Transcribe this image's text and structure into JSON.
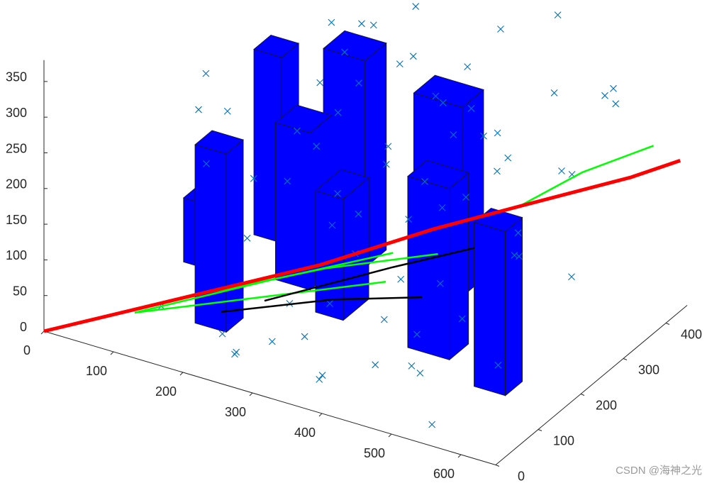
{
  "chart_data": {
    "type": "scatter3d",
    "xlim": [
      0,
      650
    ],
    "ylim": [
      0,
      450
    ],
    "zlim": [
      0,
      380
    ],
    "xticks": [
      0,
      100,
      200,
      300,
      400,
      500,
      600
    ],
    "yticks": [
      0,
      100,
      200,
      300,
      400
    ],
    "zticks": [
      0,
      50,
      100,
      150,
      200,
      250,
      300,
      350
    ],
    "scatter": {
      "color": "#0072bd",
      "x": [
        50,
        80,
        120,
        150,
        170,
        200,
        210,
        230,
        240,
        260,
        270,
        280,
        290,
        300,
        310,
        320,
        330,
        340,
        350,
        360,
        370,
        380,
        390,
        400,
        410,
        420,
        430,
        440,
        450,
        460,
        470,
        480,
        490,
        500,
        510,
        520,
        530,
        540,
        550,
        560,
        570,
        580,
        590,
        600,
        100,
        140,
        190,
        250,
        300,
        350,
        400,
        450,
        500,
        550,
        220,
        330,
        440,
        260,
        370,
        480,
        160,
        280,
        390,
        500,
        240,
        360,
        310,
        420,
        200,
        350
      ],
      "y": [
        300,
        250,
        80,
        350,
        200,
        420,
        150,
        300,
        60,
        380,
        250,
        120,
        400,
        200,
        330,
        90,
        270,
        440,
        160,
        350,
        50,
        300,
        220,
        420,
        130,
        380,
        260,
        60,
        330,
        180,
        440,
        100,
        290,
        400,
        150,
        350,
        240,
        30,
        420,
        200,
        310,
        120,
        380,
        260,
        200,
        420,
        330,
        40,
        250,
        100,
        380,
        160,
        300,
        440,
        60,
        200,
        120,
        350,
        400,
        80,
        170,
        220,
        10,
        60,
        180,
        280,
        30,
        250,
        380,
        420
      ],
      "z": [
        100,
        260,
        30,
        150,
        80,
        280,
        200,
        350,
        10,
        120,
        260,
        60,
        340,
        180,
        300,
        40,
        220,
        250,
        130,
        250,
        20,
        290,
        160,
        330,
        70,
        210,
        270,
        50,
        190,
        110,
        360,
        30,
        240,
        170,
        90,
        310,
        140,
        10,
        280,
        200,
        230,
        60,
        300,
        120,
        240,
        180,
        150,
        20,
        310,
        90,
        200,
        260,
        100,
        280,
        30,
        160,
        140,
        330,
        220,
        50,
        270,
        120,
        40,
        110,
        190,
        350,
        60,
        170,
        260,
        80
      ]
    },
    "boxes": {
      "color": "#0000ff",
      "x": [
        150,
        60,
        100,
        180,
        264,
        200,
        527,
        407,
        330
      ],
      "y": [
        110,
        230,
        330,
        250,
        207,
        330,
        150,
        190,
        330
      ],
      "dx": [
        45,
        30,
        40,
        50,
        40,
        60,
        45,
        60,
        70
      ],
      "dy": [
        40,
        40,
        40,
        50,
        60,
        50,
        40,
        45,
        50
      ],
      "height": [
        250,
        90,
        260,
        220,
        170,
        290,
        230,
        240,
        265
      ]
    },
    "series": [
      {
        "color": "#00ff00",
        "x": [
          100,
          250,
          400
        ],
        "y": [
          50,
          100,
          150
        ],
        "z": [
          30,
          70,
          110
        ]
      },
      {
        "color": "#00ff00",
        "x": [
          100,
          250,
          380
        ],
        "y": [
          50,
          130,
          200
        ],
        "z": [
          30,
          80,
          120
        ]
      },
      {
        "color": "#00ff00",
        "x": [
          150,
          300,
          420
        ],
        "y": [
          80,
          170,
          240
        ],
        "z": [
          50,
          90,
          110
        ]
      },
      {
        "color": "#00ff00",
        "x": [
          500,
          560,
          620
        ],
        "y": [
          300,
          350,
          420
        ],
        "z": [
          170,
          210,
          230
        ]
      },
      {
        "color": "#000000",
        "x": [
          200,
          330,
          440
        ],
        "y": [
          90,
          140,
          170
        ],
        "z": [
          40,
          70,
          90
        ]
      },
      {
        "color": "#000000",
        "x": [
          250,
          380,
          460
        ],
        "y": [
          110,
          200,
          260
        ],
        "z": [
          60,
          100,
          120
        ]
      },
      {
        "color": "#ff0000",
        "x": [
          0,
          150,
          300,
          420,
          500,
          600,
          640
        ],
        "y": [
          0,
          80,
          160,
          230,
          300,
          400,
          450
        ],
        "z": [
          0,
          50,
          100,
          150,
          170,
          190,
          200
        ]
      }
    ],
    "watermark": "CSDN @海神之光"
  }
}
